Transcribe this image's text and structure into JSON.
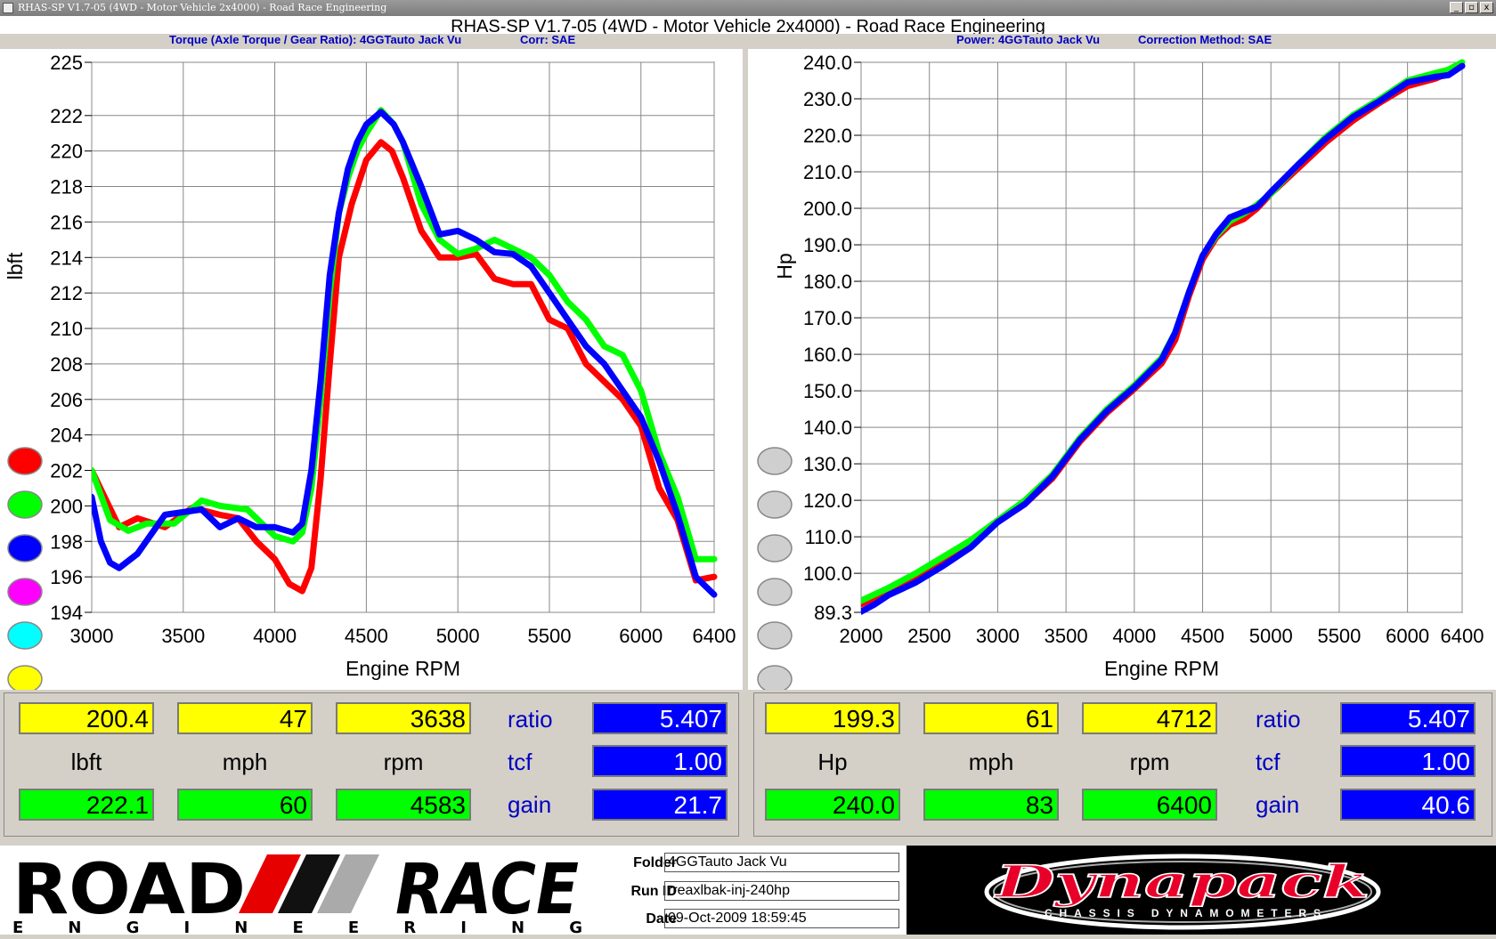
{
  "window": {
    "title": "RHAS-SP V1.7-05  (4WD - Motor Vehicle 2x4000) - Road Race Engineering",
    "buttons": [
      "_",
      "▫",
      "x"
    ]
  },
  "chart_title": "RHAS-SP V1.7-05  (4WD - Motor Vehicle 2x4000) - Road Race Engineering",
  "subtitles": {
    "torque": "Torque (Axle Torque / Gear Ratio): 4GGTauto Jack Vu",
    "torque_corr": "Corr: SAE",
    "power": "Power: 4GGTauto Jack Vu",
    "power_corr": "Correction Method: SAE"
  },
  "run_colors": [
    "#ff0000",
    "#00ff00",
    "#0000ff",
    "#ff00ff",
    "#00ffff",
    "#ffff00"
  ],
  "chart_data": [
    {
      "type": "line",
      "title": "",
      "xlabel": "Engine RPM",
      "ylabel": "lbft",
      "xlim": [
        3000,
        6400
      ],
      "ylim": [
        194,
        225
      ],
      "xticks": [
        3000,
        3500,
        4000,
        4500,
        5000,
        5500,
        6000,
        6400
      ],
      "yticks": [
        194,
        196,
        198,
        200,
        202,
        204,
        206,
        208,
        210,
        212,
        214,
        216,
        218,
        220,
        222,
        225
      ],
      "grid": true,
      "series": [
        {
          "color": "#ff0000",
          "x": [
            3000,
            3150,
            3250,
            3400,
            3550,
            3700,
            3800,
            3900,
            4000,
            4080,
            4150,
            4200,
            4250,
            4300,
            4350,
            4420,
            4500,
            4580,
            4640,
            4700,
            4800,
            4900,
            5000,
            5100,
            5200,
            5300,
            5400,
            5500,
            5600,
            5700,
            5800,
            5900,
            6000,
            6100,
            6200,
            6300,
            6400
          ],
          "y": [
            202,
            198.8,
            199.3,
            198.8,
            199.9,
            199.5,
            199.3,
            198,
            197,
            195.6,
            195.2,
            196.5,
            201.5,
            208,
            214,
            217,
            219.5,
            220.5,
            220,
            218.5,
            215.5,
            214,
            214,
            214.2,
            212.8,
            212.5,
            212.5,
            210.5,
            210,
            208,
            207,
            206,
            204.5,
            201,
            199.2,
            195.8,
            196
          ]
        },
        {
          "color": "#00ff00",
          "x": [
            3000,
            3100,
            3200,
            3300,
            3450,
            3600,
            3700,
            3850,
            4000,
            4100,
            4150,
            4200,
            4250,
            4300,
            4350,
            4400,
            4450,
            4500,
            4580,
            4650,
            4700,
            4800,
            4900,
            5000,
            5100,
            5200,
            5300,
            5400,
            5500,
            5600,
            5700,
            5800,
            5900,
            6000,
            6100,
            6200,
            6300,
            6400
          ],
          "y": [
            202,
            199.2,
            198.6,
            199,
            199,
            200.3,
            200,
            199.8,
            198.3,
            198,
            198.5,
            201,
            206,
            212,
            216.5,
            218.5,
            220,
            221,
            222.3,
            221.5,
            220.5,
            217,
            215,
            214.2,
            214.5,
            215,
            214.5,
            214,
            213,
            211.5,
            210.5,
            209,
            208.5,
            206.5,
            203,
            200.5,
            197,
            197
          ]
        },
        {
          "color": "#0000ff",
          "x": [
            3000,
            3050,
            3100,
            3150,
            3250,
            3400,
            3600,
            3700,
            3800,
            3900,
            4000,
            4100,
            4150,
            4200,
            4250,
            4300,
            4350,
            4400,
            4450,
            4500,
            4580,
            4650,
            4700,
            4800,
            4900,
            5000,
            5100,
            5200,
            5300,
            5400,
            5500,
            5600,
            5700,
            5800,
            5900,
            6000,
            6100,
            6200,
            6300,
            6400
          ],
          "y": [
            200.5,
            198,
            196.8,
            196.5,
            197.3,
            199.5,
            199.8,
            198.8,
            199.3,
            198.8,
            198.8,
            198.5,
            199,
            202,
            207,
            213,
            216.5,
            219,
            220.5,
            221.5,
            222.2,
            221.5,
            220.5,
            218,
            215.3,
            215.5,
            215,
            214.3,
            214.2,
            213.5,
            212,
            210.5,
            209,
            208,
            206.5,
            205,
            202.5,
            199.5,
            196,
            195
          ]
        }
      ]
    },
    {
      "type": "line",
      "title": "",
      "xlabel": "Engine RPM",
      "ylabel": "Hp",
      "xlim": [
        2000,
        6400
      ],
      "ylim": [
        89.3,
        240
      ],
      "xticks": [
        2000,
        2500,
        3000,
        3500,
        4000,
        4500,
        5000,
        5500,
        6000,
        6400
      ],
      "ytick_labels": [
        "89.3",
        "100.0",
        "110.0",
        "120.0",
        "130.0",
        "140.0",
        "150.0",
        "160.0",
        "170.0",
        "180.0",
        "190.0",
        "200.0",
        "210.0",
        "220.0",
        "230.0",
        "240.0"
      ],
      "grid": true,
      "series": [
        {
          "color": "#ff0000",
          "x": [
            2000,
            2200,
            2400,
            2600,
            2800,
            3000,
            3200,
            3400,
            3600,
            3800,
            4000,
            4200,
            4300,
            4400,
            4500,
            4600,
            4700,
            4800,
            4900,
            5000,
            5200,
            5400,
            5600,
            5800,
            6000,
            6200,
            6300,
            6400
          ],
          "y": [
            91.5,
            95,
            99,
            103,
            108,
            114,
            119,
            126,
            136,
            144,
            150.5,
            157.5,
            164,
            176,
            186,
            192,
            195.5,
            197,
            200,
            204,
            211,
            218,
            224,
            229,
            233.5,
            235.5,
            237,
            239
          ]
        },
        {
          "color": "#00ff00",
          "x": [
            2000,
            2200,
            2400,
            2600,
            2800,
            3000,
            3200,
            3400,
            3600,
            3800,
            4000,
            4200,
            4300,
            4400,
            4500,
            4600,
            4700,
            4800,
            4900,
            5000,
            5200,
            5400,
            5600,
            5800,
            6000,
            6200,
            6300,
            6400
          ],
          "y": [
            92.5,
            96,
            100,
            104.5,
            109,
            114.5,
            120,
            127,
            137,
            145,
            151.5,
            159,
            166,
            177,
            187,
            192.5,
            196.5,
            198.5,
            201,
            204,
            212,
            219.5,
            225.5,
            230,
            235,
            237,
            238,
            240
          ]
        },
        {
          "color": "#0000ff",
          "x": [
            2000,
            2100,
            2200,
            2400,
            2600,
            2800,
            3000,
            3200,
            3400,
            3600,
            3800,
            4000,
            4200,
            4300,
            4400,
            4500,
            4600,
            4700,
            4800,
            4900,
            5000,
            5200,
            5400,
            5600,
            5800,
            6000,
            6200,
            6300,
            6400
          ],
          "y": [
            89.5,
            91.5,
            94,
            97.5,
            102,
            107,
            114,
            119,
            126.5,
            136.5,
            144.5,
            151,
            158.5,
            166,
            177,
            187,
            193,
            197.5,
            199,
            200.5,
            204.5,
            212,
            219,
            225,
            229.5,
            234.5,
            236,
            236.5,
            239
          ]
        }
      ]
    }
  ],
  "readouts": {
    "left": {
      "cursor_value": "200.4",
      "cursor_mph": "47",
      "cursor_rpm": "3638",
      "units": {
        "value": "lbft",
        "mph": "mph",
        "rpm": "rpm"
      },
      "peak_value": "222.1",
      "peak_mph": "60",
      "peak_rpm": "4583",
      "ratio_label": "ratio",
      "ratio": "5.407",
      "tcf_label": "tcf",
      "tcf": "1.00",
      "gain_label": "gain",
      "gain": "21.7"
    },
    "right": {
      "cursor_value": "199.3",
      "cursor_mph": "61",
      "cursor_rpm": "4712",
      "units": {
        "value": "Hp",
        "mph": "mph",
        "rpm": "rpm"
      },
      "peak_value": "240.0",
      "peak_mph": "83",
      "peak_rpm": "6400",
      "ratio_label": "ratio",
      "ratio": "5.407",
      "tcf_label": "tcf",
      "tcf": "1.00",
      "gain_label": "gain",
      "gain": "40.6"
    }
  },
  "footer": {
    "logo_text_main": "ROAD",
    "logo_text_race": "RACE",
    "logo_text_sub": "E N G I N E E R I N G",
    "folder_label": "Folder",
    "folder": "4GGTauto Jack Vu",
    "runid_label": "Run ID",
    "runid": "rreaxlbak-inj-240hp",
    "date_label": "Date",
    "date": "09-Oct-2009  18:59:45",
    "brand": "Dynapack",
    "brand_sub": "CHASSIS DYNAMOMETERS"
  }
}
